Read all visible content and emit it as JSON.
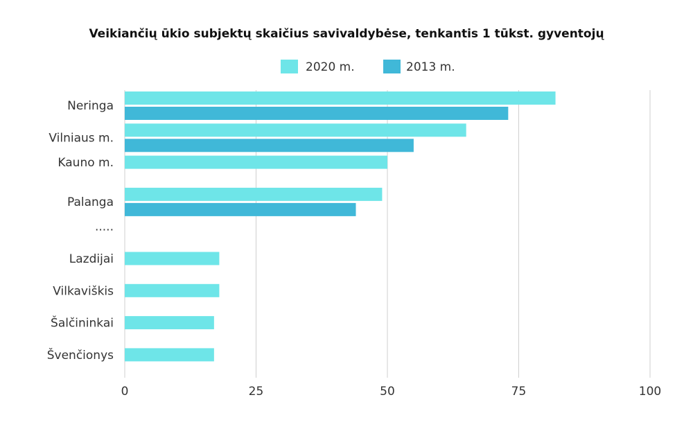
{
  "chart_data": {
    "type": "bar",
    "orientation": "horizontal",
    "title": "Veikiančių ūkio subjektų skaičius savivaldybėse, tenkantis 1 tūkst. gyventojų",
    "categories": [
      "Neringa",
      "Vilniaus m.",
      "Kauno m.",
      "Palanga",
      ".....",
      "Lazdijai",
      "Vilkaviškis",
      "Šalčininkai",
      "Švenčionys"
    ],
    "series": [
      {
        "name": "2020 m.",
        "color": "#6ee5e8",
        "values": [
          82,
          65,
          50,
          49,
          null,
          18,
          18,
          17,
          17
        ]
      },
      {
        "name": "2013 m.",
        "color": "#40b8d8",
        "values": [
          73,
          55,
          null,
          44,
          null,
          null,
          null,
          null,
          null
        ]
      }
    ],
    "xlim": [
      0,
      100
    ],
    "xticks": [
      0,
      25,
      50,
      75,
      100
    ],
    "grid": true,
    "legend_position": "top"
  }
}
